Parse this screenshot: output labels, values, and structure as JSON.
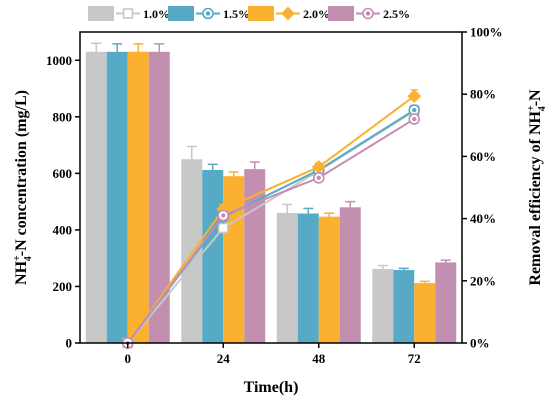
{
  "chart_data": {
    "type": "bar+line",
    "categories": [
      "0",
      "24",
      "48",
      "72"
    ],
    "xlabel": "Time(h)",
    "ylabel_left": {
      "main": "NH",
      "sup": "+",
      "sub": "4",
      "rest": "-N concentration (mg/L)"
    },
    "ylabel_right": {
      "main": "Removal efficiency of  NH",
      "sup": "+",
      "sub": "4",
      "rest": "-N"
    },
    "ylim_left": [
      0,
      1100
    ],
    "yticks_left": [
      0,
      200,
      400,
      600,
      800,
      1000
    ],
    "ylim_right": [
      0,
      1.0
    ],
    "yticks_right": [
      "0%",
      "20%",
      "40%",
      "60%",
      "80%",
      "100%"
    ],
    "series": [
      {
        "name": "1.0%",
        "color": "#c8c8c8",
        "marker": "square",
        "bars": [
          1030,
          650,
          460,
          262
        ],
        "bar_errors": [
          30,
          45,
          30,
          12
        ],
        "removal": [
          0,
          0.37,
          0.553,
          0.746
        ],
        "removal_errors": [
          0,
          0.02,
          0.02,
          0.015
        ]
      },
      {
        "name": "1.5%",
        "color": "#56aac6",
        "marker": "circle",
        "bars": [
          1030,
          612,
          458,
          258
        ],
        "bar_errors": [
          28,
          20,
          18,
          6
        ],
        "removal": [
          0,
          0.405,
          0.556,
          0.749
        ],
        "removal_errors": [
          0,
          0.02,
          0.015,
          0.015
        ]
      },
      {
        "name": "2.0%",
        "color": "#fbb030",
        "marker": "diamond",
        "bars": [
          1030,
          590,
          447,
          212
        ],
        "bar_errors": [
          28,
          15,
          12,
          6
        ],
        "removal": [
          0,
          0.43,
          0.566,
          0.794
        ],
        "removal_errors": [
          0,
          0.015,
          0.012,
          0.02
        ]
      },
      {
        "name": "2.5%",
        "color": "#c28fb1",
        "marker": "circle",
        "bars": [
          1030,
          615,
          480,
          285
        ],
        "bar_errors": [
          28,
          25,
          20,
          8
        ],
        "removal": [
          0,
          0.41,
          0.531,
          0.72
        ],
        "removal_errors": [
          0,
          0.015,
          0.015,
          0.015
        ]
      }
    ]
  }
}
